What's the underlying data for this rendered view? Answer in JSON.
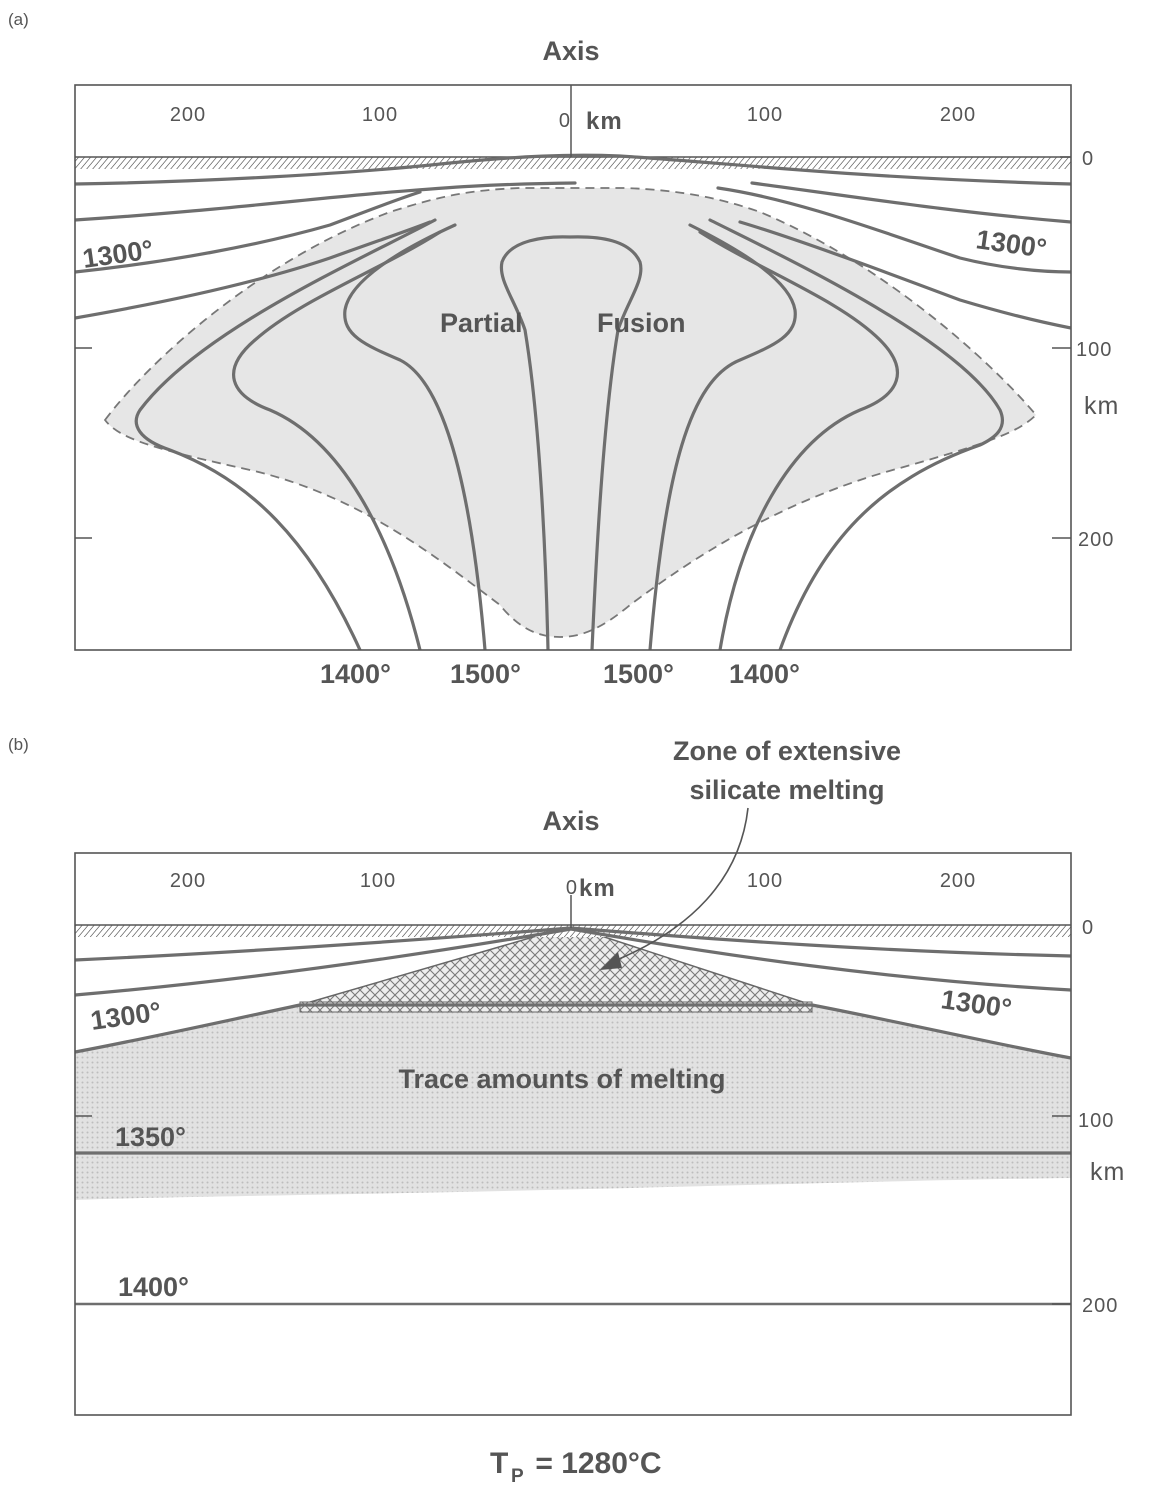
{
  "panel_a": {
    "label": "(a)",
    "axis_title": "Axis",
    "top_ticks": [
      "200",
      "100",
      "0",
      "100",
      "200"
    ],
    "top_unit": "km",
    "depth_ticks": [
      "0",
      "100",
      "200"
    ],
    "depth_unit": "km",
    "isotherm_labels_upper": [
      "1300°",
      "1300°"
    ],
    "isotherm_labels_bottom": [
      "1400°",
      "1500°",
      "1500°",
      "1400°"
    ],
    "region_label_left": "Partial",
    "region_label_right": "Fusion"
  },
  "panel_b": {
    "label": "(b)",
    "axis_title": "Axis",
    "top_ticks": [
      "200",
      "100",
      "0",
      "100",
      "200"
    ],
    "top_unit": "km",
    "depth_ticks": [
      "0",
      "100",
      "200"
    ],
    "depth_unit": "km",
    "annotation_line1": "Zone of extensive",
    "annotation_line2": "silicate melting",
    "isotherm_labels": [
      "1300°",
      "1300°",
      "1350°",
      "1400°"
    ],
    "trace_label": "Trace amounts of melting"
  },
  "caption": {
    "main": "T",
    "subscript": "P",
    "rest": " = 1280°C"
  },
  "colors": {
    "shade": "#e6e6e6",
    "contour": "#6e6e6e",
    "frame": "#555555"
  }
}
